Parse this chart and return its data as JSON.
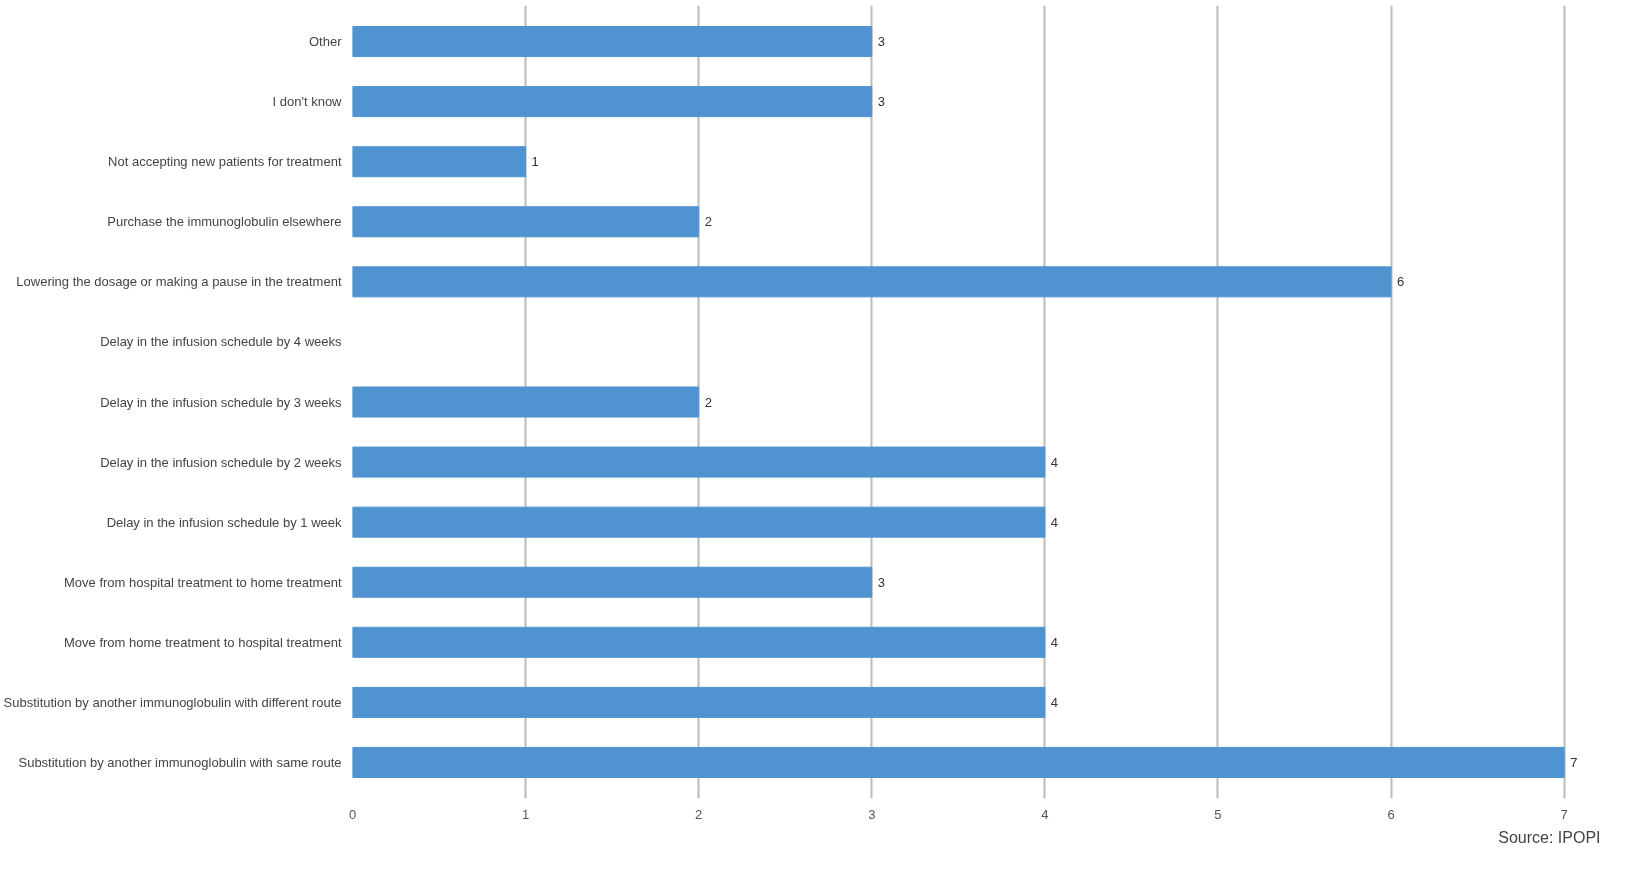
{
  "chart_data": {
    "type": "bar",
    "orientation": "horizontal",
    "categories": [
      "Other",
      "I don't know",
      "Not accepting new patients for treatment",
      "Purchase the immunoglobulin elsewhere",
      "Lowering the dosage or making a pause in the treatment",
      "Delay in the infusion schedule by 4 weeks",
      "Delay in the infusion schedule by 3 weeks",
      "Delay in the infusion schedule by 2 weeks",
      "Delay in the infusion schedule by 1 week",
      "Move from hospital treatment to home treatment",
      "Move from home treatment to hospital treatment",
      "Substitution by another immunoglobulin with different route",
      "Substitution by another immunoglobulin with same route"
    ],
    "values": [
      3,
      3,
      1,
      2,
      6,
      null,
      2,
      4,
      4,
      3,
      4,
      4,
      7
    ],
    "color": "#4f94d0",
    "xlim": [
      0,
      7
    ],
    "xticks": [
      0,
      1,
      2,
      3,
      4,
      5,
      6,
      7
    ],
    "grid": "x",
    "data_labels": true,
    "annotations": [
      "Source: IPOPI"
    ]
  }
}
